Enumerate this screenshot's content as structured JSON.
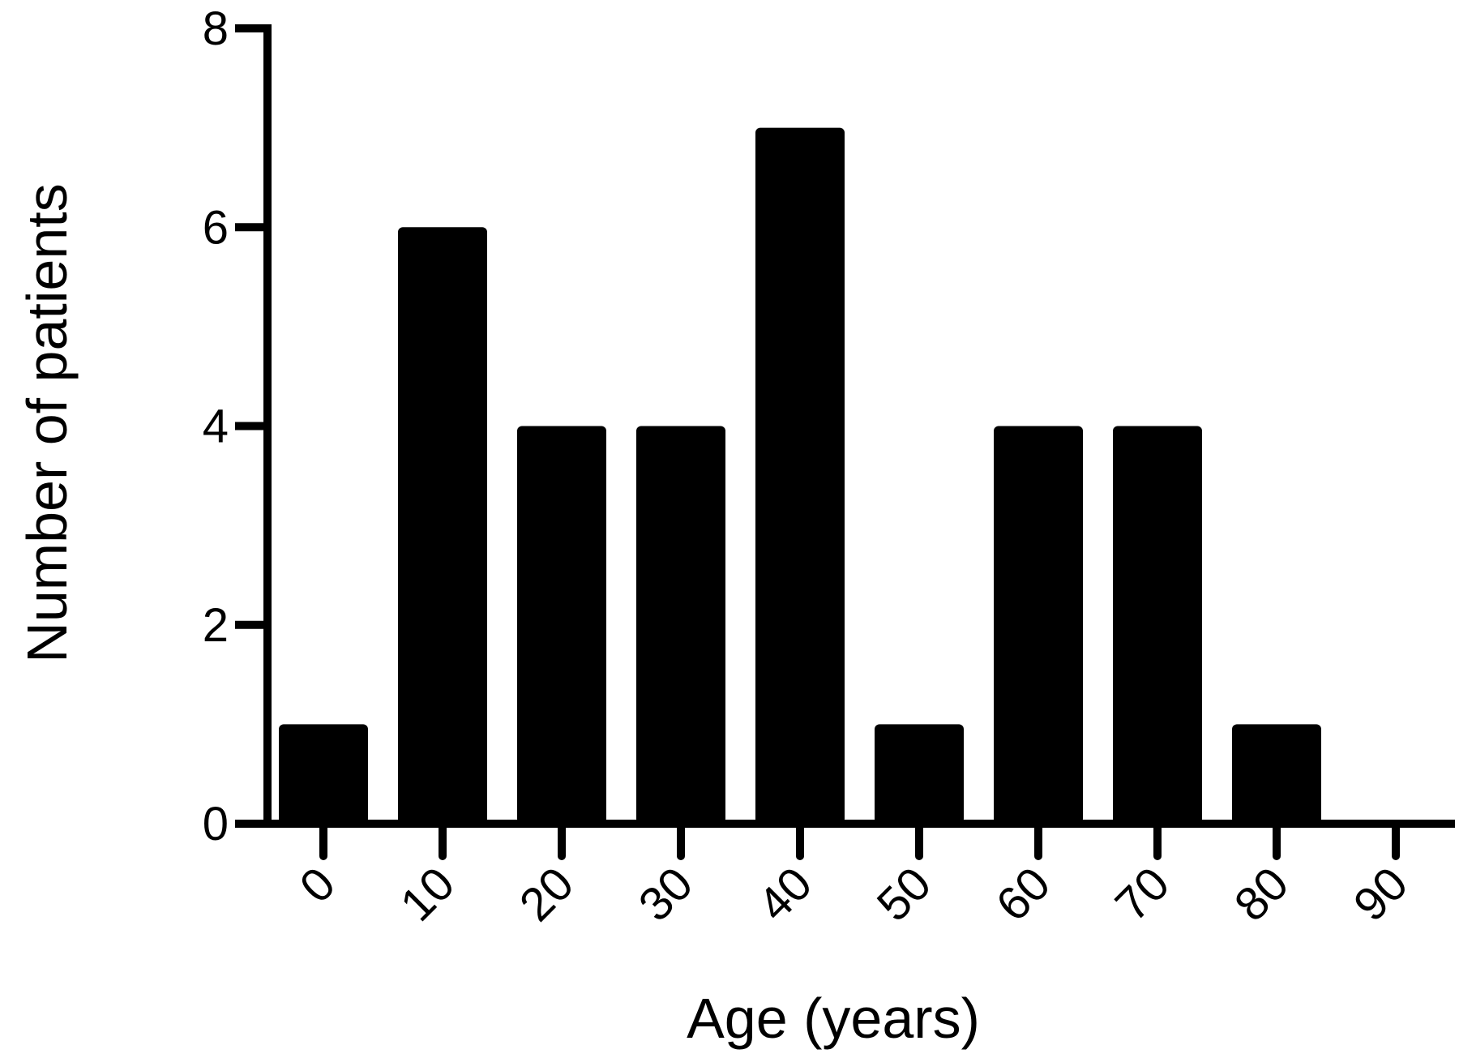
{
  "chart_data": {
    "type": "bar",
    "xlabel": "Age (years)",
    "ylabel": "Number of patients",
    "categories": [
      "0",
      "10",
      "20",
      "30",
      "40",
      "50",
      "60",
      "70",
      "80",
      "90"
    ],
    "values": [
      1,
      6,
      4,
      4,
      7,
      1,
      4,
      4,
      1,
      0
    ],
    "ylim": [
      0,
      8
    ],
    "yticks": [
      "0",
      "2",
      "4",
      "6",
      "8"
    ],
    "grid": false,
    "legend": "none",
    "bar_color": "#000000"
  }
}
